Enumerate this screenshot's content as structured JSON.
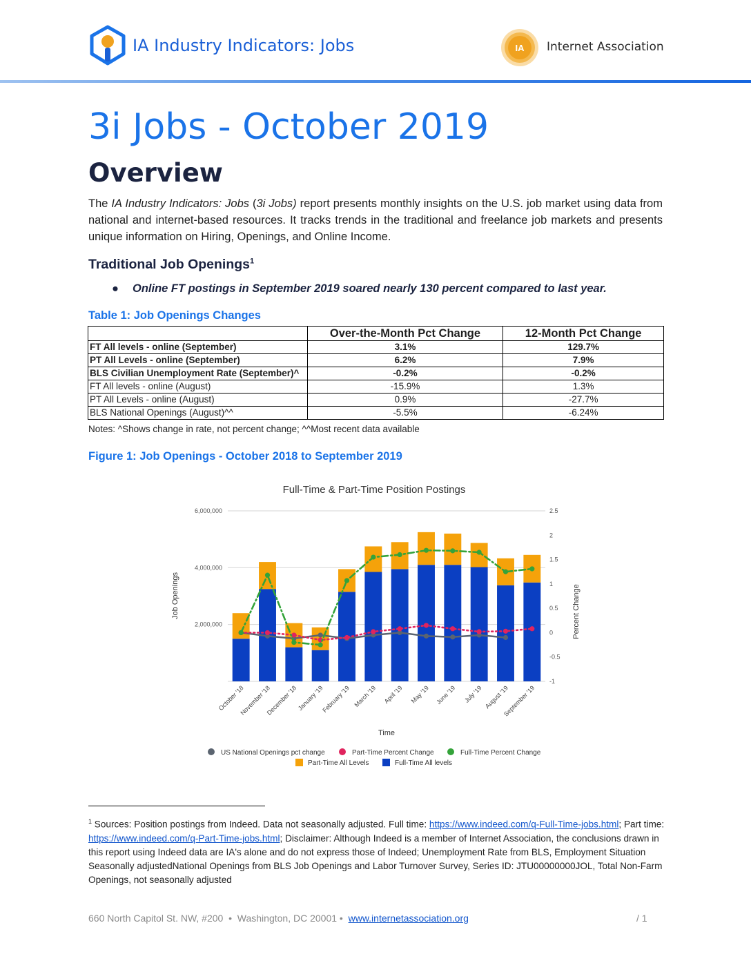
{
  "header": {
    "title": "IA Industry Indicators: Jobs",
    "org_name": "Internet Association",
    "org_logo_text": "IA"
  },
  "page_title": "3i Jobs - October 2019",
  "overview_heading": "Overview",
  "intro": {
    "p1": "The ",
    "p1_italic": "IA Industry Indicators: Jobs",
    "p2": " (",
    "p2_italic": "3i Jobs)",
    "p3": " report presents monthly insights on the U.S. job market using data from national and internet-based resources. It tracks trends in the traditional and freelance job markets and presents unique information on Hiring, Openings, and Online Income."
  },
  "section_heading": "Traditional Job Openings",
  "section_footnote_mark": "1",
  "bullet": {
    "marker": "●",
    "text": "Online FT postings in September 2019 soared nearly 130 percent compared to last year."
  },
  "table1": {
    "caption": "Table 1: Job Openings Changes",
    "columns": [
      "",
      "Over-the-Month Pct Change",
      "12-Month Pct Change"
    ],
    "rows": [
      {
        "label": "FT All levels - online (September)",
        "month": "3.1%",
        "year": "129.7%",
        "bold": true
      },
      {
        "label": "PT All Levels - online (September)",
        "month": "6.2%",
        "year": "7.9%",
        "bold": true
      },
      {
        "label": "BLS Civilian Unemployment Rate (September)^",
        "month": "-0.2%",
        "year": "-0.2%",
        "bold": true
      },
      {
        "label": "FT All levels - online (August)",
        "month": "-15.9%",
        "year": "1.3%",
        "bold": false
      },
      {
        "label": "PT All Levels - online (August)",
        "month": "0.9%",
        "year": "-27.7%",
        "bold": false
      },
      {
        "label": "BLS National Openings (August)^^",
        "month": "-5.5%",
        "year": "-6.24%",
        "bold": false
      }
    ],
    "notes": "Notes: ^Shows change in rate, not percent change; ^^Most recent data available"
  },
  "figure1": {
    "caption": "Figure 1: Job Openings - October 2018 to September 2019"
  },
  "chart_data": {
    "type": "bar",
    "title": "Full-Time & Part-Time Position Postings",
    "xlabel": "Time",
    "ylabel": "Job Openings",
    "y2label": "Percent Change",
    "ylim": [
      0,
      6000000
    ],
    "y2lim": [
      -1,
      2.5
    ],
    "yticks": [
      "",
      "2,000,000",
      "4,000,000",
      "6,000,000"
    ],
    "y2ticks": [
      "-1",
      "-0.5",
      "0",
      "0.5",
      "1",
      "1.5",
      "2",
      "2.5"
    ],
    "categories": [
      "October '18",
      "November '18",
      "December '18",
      "January '19",
      "February '19",
      "March '19",
      "April '19",
      "May '19",
      "June '19",
      "July '19",
      "August '19",
      "September '19"
    ],
    "stacked_series": [
      {
        "name": "Full-Time All levels",
        "color": "#0b3fc2",
        "values": [
          1500000,
          3250000,
          1200000,
          1100000,
          3150000,
          3850000,
          3950000,
          4100000,
          4100000,
          4020000,
          3380000,
          3480000
        ]
      },
      {
        "name": "Part-Time All Levels",
        "color": "#f5a20a",
        "values": [
          900000,
          950000,
          850000,
          800000,
          800000,
          900000,
          950000,
          1150000,
          1100000,
          850000,
          950000,
          970000
        ]
      }
    ],
    "line_series": [
      {
        "name": "US National Openings pct change",
        "color": "#5b6470",
        "style": "solid",
        "values": [
          0.0,
          -0.07,
          -0.12,
          -0.05,
          -0.12,
          -0.05,
          0.0,
          -0.07,
          -0.09,
          -0.05,
          -0.1,
          null
        ]
      },
      {
        "name": "Part-Time Percent Change",
        "color": "#e0245e",
        "style": "dotted",
        "values": [
          0.0,
          0.0,
          -0.05,
          -0.15,
          -0.1,
          0.02,
          0.08,
          0.15,
          0.08,
          0.02,
          0.03,
          0.08
        ]
      },
      {
        "name": "Full-Time Percent Change",
        "color": "#34a33a",
        "style": "dashdot",
        "values": [
          0.0,
          1.18,
          -0.2,
          -0.25,
          1.07,
          1.55,
          1.6,
          1.69,
          1.68,
          1.65,
          1.25,
          1.31
        ]
      }
    ],
    "legend_position": "bottom",
    "grid": true
  },
  "footnote": {
    "mark": "1",
    "t1": " Sources: Position postings from Indeed. Data not seasonally adjusted. Full time: ",
    "link1": "https://www.indeed.com/q-Full-Time-jobs.html",
    "t2": "; Part time: ",
    "link2": "https://www.indeed.com/q-Part-Time-jobs.html",
    "t3": "; Disclaimer: Although Indeed is a member of Internet Association, the conclusions drawn in this report using Indeed data are IA's alone and do not express those of Indeed; Unemployment Rate from BLS, Employment Situation Seasonally adjustedNational Openings from BLS Job Openings and Labor Turnover Survey, Series ID: JTU00000000JOL, Total Non-Farm Openings, not seasonally adjusted"
  },
  "footer": {
    "address": "660 North Capitol St. NW, #200  •  Washington, DC 20001 •  ",
    "link": "www.internetassociation.org",
    "page": "/  1"
  },
  "colors": {
    "accent_blue": "#1a73e8",
    "heading_navy": "#1b2340",
    "ia_orange": "#f0a21f"
  }
}
